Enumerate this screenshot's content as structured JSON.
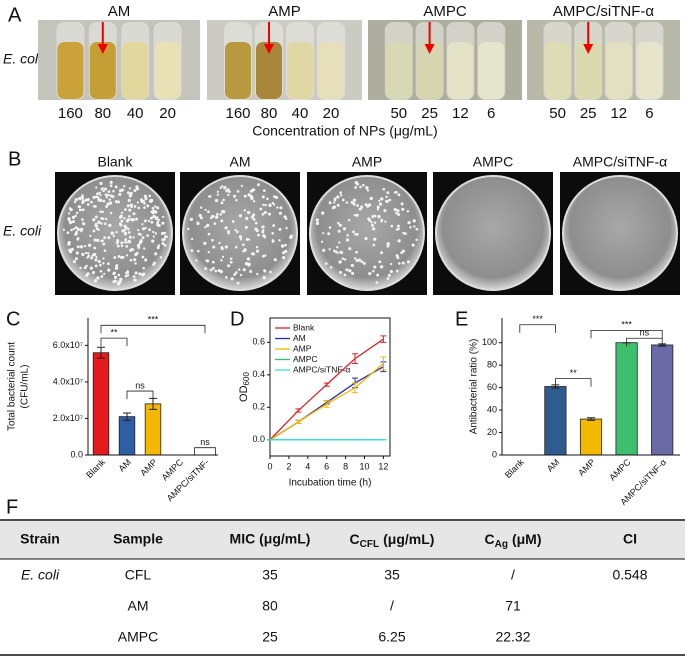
{
  "panel_labels": [
    "A",
    "B",
    "C",
    "D",
    "E",
    "F"
  ],
  "tubes": {
    "row_label": "E. coli",
    "groups": [
      {
        "name": "AM",
        "concentrations": [
          160,
          80,
          40,
          20
        ]
      },
      {
        "name": "AMP",
        "concentrations": [
          160,
          80,
          40,
          20
        ]
      },
      {
        "name": "AMPC",
        "concentrations": [
          50,
          25,
          12,
          6
        ]
      },
      {
        "name": "AMPC/siTNF-α",
        "concentrations": [
          50,
          25,
          12,
          6
        ]
      }
    ],
    "caption": "Concentration of NPs (μg/mL)"
  },
  "plates": {
    "row_label": "E. coli",
    "samples": [
      "Blank",
      "AM",
      "AMP",
      "AMPC",
      "AMPC/siTNF-α"
    ]
  },
  "chart_data": [
    {
      "type": "bar",
      "ylabel": [
        "Total bacterial count",
        "(CFU/mL)"
      ],
      "categories": [
        "Blank",
        "AM",
        "AMP",
        "AMPC",
        "AMPC/siTNF-"
      ],
      "values": [
        56000000,
        21000000,
        28000000,
        0,
        0
      ],
      "errors": [
        3000000,
        2000000,
        3000000,
        0,
        0
      ],
      "colors": [
        "#e41a1c",
        "#2e5fa6",
        "#f5b800",
        "#3dbf6e",
        "#6a6aa8"
      ],
      "ylim": [
        0,
        75000000
      ],
      "yticks": [
        {
          "value": 0,
          "label": "0.0"
        },
        {
          "value": 20000000,
          "label": "2.0x10⁷"
        },
        {
          "value": 40000000,
          "label": "4.0x10⁷"
        },
        {
          "value": 60000000,
          "label": "6.0x10⁷"
        }
      ],
      "annotations": [
        "**",
        "ns",
        "***",
        "ns"
      ]
    },
    {
      "type": "line",
      "xlabel": "Incubation time (h)",
      "ylabel": {
        "main": "OD",
        "sub": "600"
      },
      "x": [
        0,
        3,
        6,
        9,
        12
      ],
      "xlim": [
        0,
        12.7
      ],
      "xticks": [
        0,
        2,
        4,
        6,
        8,
        10,
        12
      ],
      "ylim": [
        -0.1,
        0.75
      ],
      "yticks": [
        {
          "value": 0,
          "label": "0.0"
        },
        0.2,
        0.4,
        0.6
      ],
      "legend": "upper left",
      "series": [
        {
          "name": "Blank",
          "color": "#e0202a",
          "values": [
            0,
            0.18,
            0.34,
            0.5,
            0.62
          ],
          "errors": [
            0,
            0.01,
            0.01,
            0.03,
            0.02
          ]
        },
        {
          "name": "AM",
          "color": "#2b2bb0",
          "values": [
            0,
            0.11,
            0.23,
            0.35,
            0.45
          ],
          "errors": [
            0,
            0.01,
            0.01,
            0.03,
            0.03
          ]
        },
        {
          "name": "AMP",
          "color": "#f5b800",
          "values": [
            0,
            0.11,
            0.22,
            0.32,
            0.47
          ],
          "errors": [
            0,
            0.01,
            0.02,
            0.03,
            0.04
          ]
        },
        {
          "name": "AMPC",
          "color": "#2fbf6f",
          "values": [
            0,
            0,
            0,
            0,
            0
          ],
          "errors": [
            0,
            0,
            0,
            0,
            0
          ]
        },
        {
          "name": "AMPC/siTNF-α",
          "color": "#34e0e0",
          "values": [
            0,
            0,
            0,
            0,
            0
          ],
          "errors": [
            0,
            0,
            0,
            0,
            0
          ]
        }
      ]
    },
    {
      "type": "bar",
      "ylabel": "Antibacterial ratio (%)",
      "categories": [
        "Blank",
        "AM",
        "AMP",
        "AMPC",
        "AMPC/siTNF-α"
      ],
      "values": [
        0,
        61,
        32,
        100,
        98
      ],
      "errors": [
        0,
        1.5,
        1.2,
        0,
        1
      ],
      "colors": [
        "#e41a1c",
        "#2e5c8f",
        "#f5b800",
        "#3dbf6e",
        "#6a6aa8"
      ],
      "ylim": [
        0,
        122
      ],
      "yticks": [
        0,
        20,
        40,
        60,
        80,
        100
      ],
      "annotations": [
        "***",
        "**",
        "***",
        "ns"
      ]
    }
  ],
  "table": {
    "headers": [
      "Strain",
      "Sample",
      "MIC (μg/mL)",
      {
        "main": "C",
        "sub": "CFL",
        "rest": "(μg/mL)"
      },
      {
        "main": "C",
        "sub": "Ag",
        "rest": "(μM)"
      },
      "CI"
    ],
    "rows": [
      [
        "E. coli",
        "CFL",
        "35",
        "35",
        "/",
        "0.548"
      ],
      [
        null,
        "AM",
        "80",
        "/",
        "71",
        null
      ],
      [
        null,
        "AMPC",
        "25",
        "6.25",
        "22.32",
        null
      ]
    ]
  }
}
